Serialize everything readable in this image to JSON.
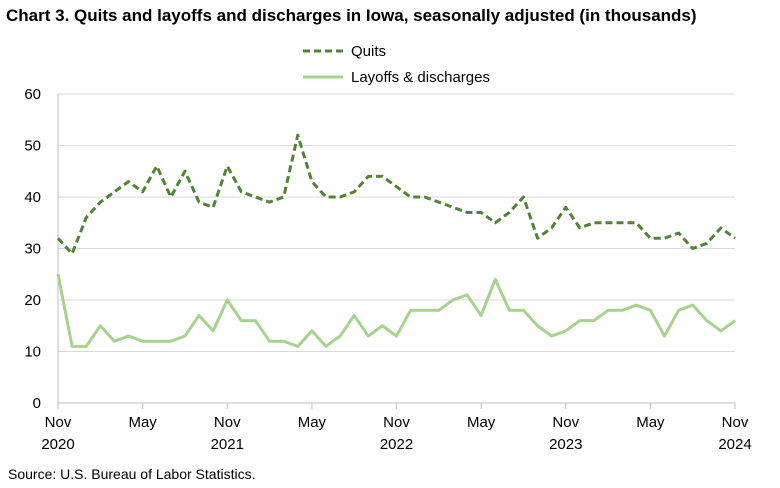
{
  "title": "Chart 3. Quits and layoffs and discharges in Iowa, seasonally adjusted (in thousands)",
  "source": "Source: U.S. Bureau of Labor Statistics.",
  "chart_data": {
    "type": "line",
    "title": "Chart 3. Quits and layoffs and discharges in Iowa, seasonally adjusted (in thousands)",
    "xlabel": "",
    "ylabel": "",
    "ylim": [
      0,
      60
    ],
    "yticks": [
      0,
      10,
      20,
      30,
      40,
      50,
      60
    ],
    "grid": "horizontal",
    "legend_position": "top-center",
    "x_tick_labels": [
      {
        "index": 0,
        "month": "Nov",
        "year": "2020"
      },
      {
        "index": 6,
        "month": "May",
        "year": ""
      },
      {
        "index": 12,
        "month": "Nov",
        "year": "2021"
      },
      {
        "index": 18,
        "month": "May",
        "year": ""
      },
      {
        "index": 24,
        "month": "Nov",
        "year": "2022"
      },
      {
        "index": 30,
        "month": "May",
        "year": ""
      },
      {
        "index": 36,
        "month": "Nov",
        "year": "2023"
      },
      {
        "index": 42,
        "month": "May",
        "year": ""
      },
      {
        "index": 48,
        "month": "Nov",
        "year": "2024"
      }
    ],
    "x": [
      "2020-11",
      "2020-12",
      "2021-01",
      "2021-02",
      "2021-03",
      "2021-04",
      "2021-05",
      "2021-06",
      "2021-07",
      "2021-08",
      "2021-09",
      "2021-10",
      "2021-11",
      "2021-12",
      "2022-01",
      "2022-02",
      "2022-03",
      "2022-04",
      "2022-05",
      "2022-06",
      "2022-07",
      "2022-08",
      "2022-09",
      "2022-10",
      "2022-11",
      "2022-12",
      "2023-01",
      "2023-02",
      "2023-03",
      "2023-04",
      "2023-05",
      "2023-06",
      "2023-07",
      "2023-08",
      "2023-09",
      "2023-10",
      "2023-11",
      "2023-12",
      "2024-01",
      "2024-02",
      "2024-03",
      "2024-04",
      "2024-05",
      "2024-06",
      "2024-07",
      "2024-08",
      "2024-09",
      "2024-10",
      "2024-11"
    ],
    "series": [
      {
        "name": "Quits",
        "color": "#548235",
        "style": "dashed",
        "values": [
          32,
          29,
          36,
          39,
          41,
          43,
          41,
          46,
          40,
          45,
          39,
          38,
          46,
          41,
          40,
          39,
          40,
          52,
          43,
          40,
          40,
          41,
          44,
          44,
          42,
          40,
          40,
          39,
          38,
          37,
          37,
          35,
          37,
          40,
          32,
          34,
          38,
          34,
          35,
          35,
          35,
          35,
          32,
          32,
          33,
          30,
          31,
          34,
          32
        ]
      },
      {
        "name": "Layoffs & discharges",
        "color": "#a9d18e",
        "style": "solid",
        "values": [
          25,
          11,
          11,
          15,
          12,
          13,
          12,
          12,
          12,
          13,
          17,
          14,
          20,
          16,
          16,
          12,
          12,
          11,
          14,
          11,
          13,
          17,
          13,
          15,
          13,
          18,
          18,
          18,
          20,
          21,
          17,
          24,
          18,
          18,
          15,
          13,
          14,
          16,
          16,
          18,
          18,
          19,
          18,
          13,
          18,
          19,
          16,
          14,
          16
        ]
      }
    ]
  }
}
